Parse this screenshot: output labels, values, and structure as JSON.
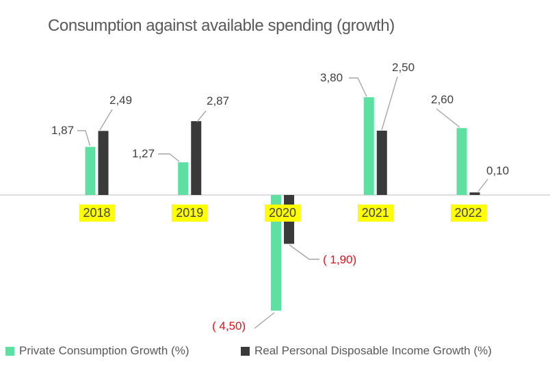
{
  "chart_data": {
    "type": "bar",
    "title": "Consumption against available spending (growth)",
    "categories": [
      "2018",
      "2019",
      "2020",
      "2021",
      "2022"
    ],
    "series": [
      {
        "name": "Private Consumption Growth (%)",
        "color": "#60DFA3",
        "values": [
          1.87,
          1.27,
          -4.5,
          3.8,
          2.6
        ],
        "data_labels": [
          "1,87",
          "1,27",
          "( 4,50)",
          "3,80",
          "2,60"
        ]
      },
      {
        "name": "Real Personal Disposable Income Growth (%)",
        "color": "#3A3A3A",
        "values": [
          2.49,
          2.87,
          -1.9,
          2.5,
          0.1
        ],
        "data_labels": [
          "2,49",
          "2,87",
          "( 1,90)",
          "2,50",
          "0,10"
        ]
      }
    ],
    "xlabel": "",
    "ylabel": "",
    "ylim": [
      -5,
      4
    ],
    "gridlines": false,
    "legend_position": "bottom",
    "decimal_separator": ",",
    "negative_format": "parentheses_red",
    "colors": {
      "title_text": "#595959",
      "data_label_text": "#404040",
      "negative_label_text": "#E0131A",
      "axis_line": "#D9D9D9",
      "leader_line": "#A6A6A6",
      "category_label_bg": "#FFFF00",
      "category_label_text": "#3F3F3F",
      "legend_text": "#595959",
      "background": "#FFFFFF"
    }
  }
}
